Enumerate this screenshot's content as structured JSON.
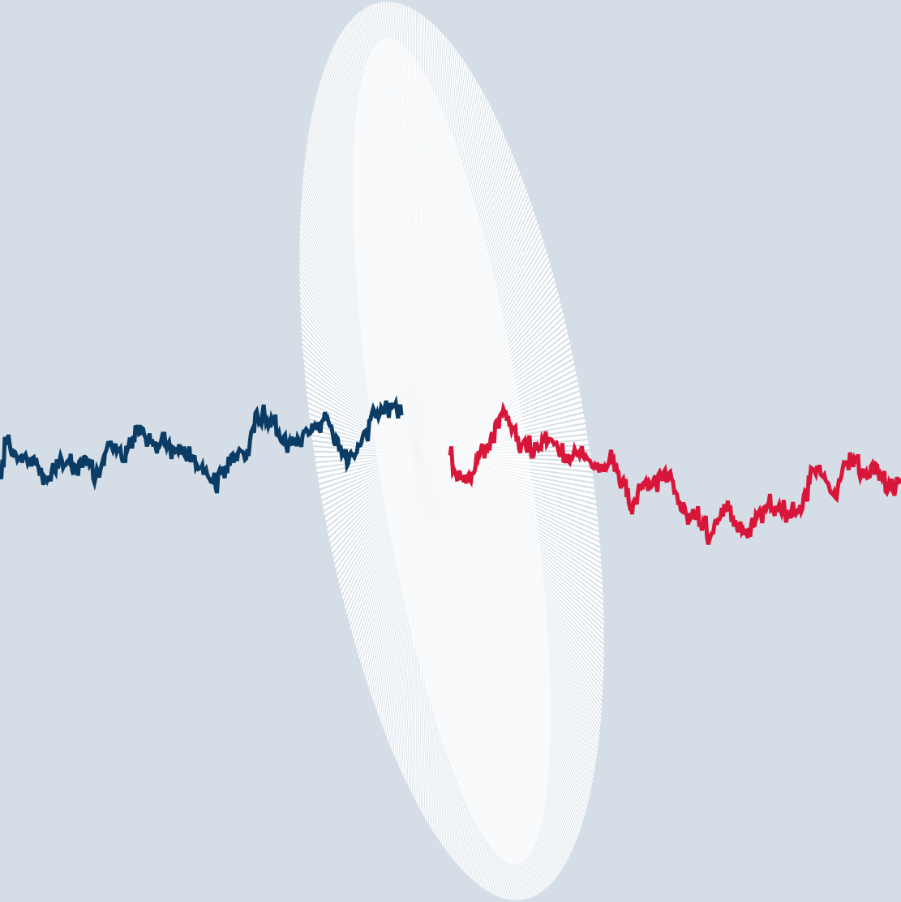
{
  "colors": {
    "background": "#d5dee6",
    "ray": "#ffffff",
    "left_trace": "#0a3c66",
    "right_trace": "#d8163a"
  },
  "icons": [
    "ray-burst-icon",
    "left-trace-icon",
    "right-trace-icon"
  ]
}
